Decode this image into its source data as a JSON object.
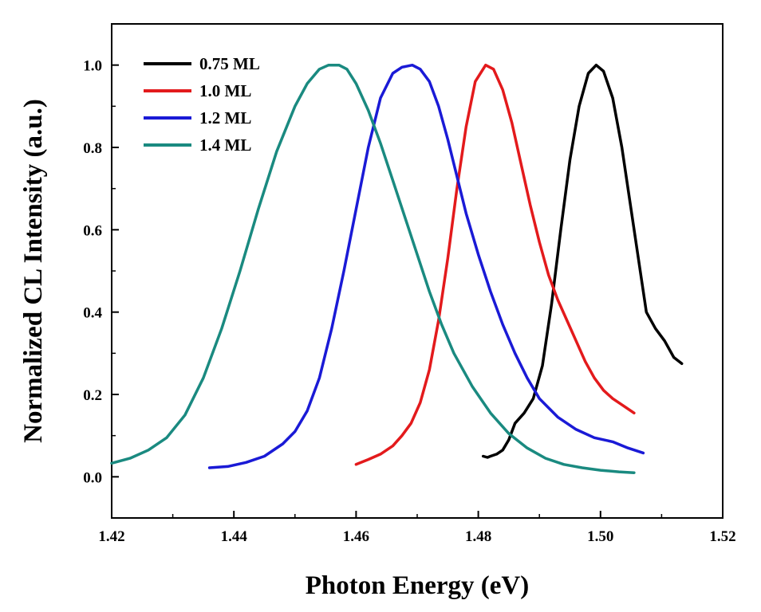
{
  "chart_data": {
    "type": "line",
    "title": "",
    "xlabel": "Photon Energy (eV)",
    "ylabel": "Normalized CL Intensity (a.u.)",
    "xlim": [
      1.42,
      1.52
    ],
    "ylim": [
      -0.1,
      1.1
    ],
    "xticks": [
      1.42,
      1.44,
      1.46,
      1.48,
      1.5,
      1.52
    ],
    "xtick_labels": [
      "1.42",
      "1.44",
      "1.46",
      "1.48",
      "1.50",
      "1.52"
    ],
    "yticks": [
      0.0,
      0.2,
      0.4,
      0.6,
      0.8,
      1.0
    ],
    "ytick_labels": [
      "0.0",
      "0.2",
      "0.4",
      "0.6",
      "0.8",
      "1.0"
    ],
    "grid": false,
    "legend_position": "top-left",
    "series": [
      {
        "name": "0.75 ML",
        "color": "#000000",
        "x": [
          1.4808,
          1.4815,
          1.482,
          1.483,
          1.484,
          1.485,
          1.486,
          1.4875,
          1.489,
          1.4905,
          1.492,
          1.4935,
          1.495,
          1.4965,
          1.498,
          1.4993,
          1.5005,
          1.502,
          1.5035,
          1.505,
          1.5065,
          1.5075,
          1.509,
          1.5105,
          1.512,
          1.5133
        ],
        "y": [
          0.05,
          0.047,
          0.05,
          0.055,
          0.065,
          0.09,
          0.13,
          0.155,
          0.19,
          0.27,
          0.42,
          0.6,
          0.77,
          0.9,
          0.98,
          1.0,
          0.985,
          0.92,
          0.8,
          0.65,
          0.5,
          0.4,
          0.36,
          0.33,
          0.29,
          0.275
        ]
      },
      {
        "name": "1.0 ML",
        "color": "#e31a1c",
        "x": [
          1.46,
          1.462,
          1.464,
          1.466,
          1.4675,
          1.469,
          1.4705,
          1.472,
          1.4735,
          1.475,
          1.4765,
          1.478,
          1.4795,
          1.4812,
          1.4825,
          1.484,
          1.4855,
          1.487,
          1.4885,
          1.49,
          1.4915,
          1.493,
          1.4945,
          1.496,
          1.4975,
          1.499,
          1.5005,
          1.502,
          1.5035,
          1.5055
        ],
        "y": [
          0.03,
          0.042,
          0.055,
          0.075,
          0.1,
          0.13,
          0.18,
          0.26,
          0.38,
          0.53,
          0.7,
          0.85,
          0.96,
          1.0,
          0.99,
          0.94,
          0.86,
          0.76,
          0.66,
          0.57,
          0.49,
          0.43,
          0.38,
          0.33,
          0.28,
          0.24,
          0.21,
          0.19,
          0.175,
          0.155
        ]
      },
      {
        "name": "1.2 ML",
        "color": "#1a1ad6",
        "x": [
          1.436,
          1.439,
          1.442,
          1.445,
          1.448,
          1.45,
          1.452,
          1.454,
          1.456,
          1.458,
          1.46,
          1.462,
          1.464,
          1.466,
          1.4675,
          1.4692,
          1.4705,
          1.472,
          1.4735,
          1.475,
          1.4765,
          1.478,
          1.48,
          1.482,
          1.484,
          1.486,
          1.488,
          1.49,
          1.493,
          1.496,
          1.499,
          1.502,
          1.5045,
          1.507
        ],
        "y": [
          0.022,
          0.025,
          0.035,
          0.05,
          0.08,
          0.11,
          0.16,
          0.24,
          0.36,
          0.5,
          0.65,
          0.8,
          0.92,
          0.98,
          0.995,
          1.0,
          0.99,
          0.96,
          0.9,
          0.82,
          0.73,
          0.64,
          0.54,
          0.45,
          0.37,
          0.3,
          0.24,
          0.19,
          0.145,
          0.115,
          0.095,
          0.085,
          0.07,
          0.058
        ]
      },
      {
        "name": "1.4 ML",
        "color": "#1a8a80",
        "x": [
          1.42,
          1.423,
          1.426,
          1.429,
          1.432,
          1.435,
          1.438,
          1.441,
          1.444,
          1.447,
          1.45,
          1.452,
          1.454,
          1.4555,
          1.4572,
          1.4585,
          1.46,
          1.462,
          1.464,
          1.466,
          1.468,
          1.47,
          1.472,
          1.474,
          1.476,
          1.479,
          1.482,
          1.485,
          1.488,
          1.491,
          1.494,
          1.497,
          1.5,
          1.503,
          1.5055
        ],
        "y": [
          0.033,
          0.045,
          0.065,
          0.095,
          0.15,
          0.24,
          0.36,
          0.5,
          0.65,
          0.79,
          0.9,
          0.955,
          0.99,
          1.0,
          1.0,
          0.99,
          0.955,
          0.89,
          0.81,
          0.72,
          0.63,
          0.54,
          0.45,
          0.37,
          0.3,
          0.22,
          0.155,
          0.105,
          0.07,
          0.045,
          0.03,
          0.022,
          0.016,
          0.012,
          0.01
        ]
      }
    ]
  }
}
